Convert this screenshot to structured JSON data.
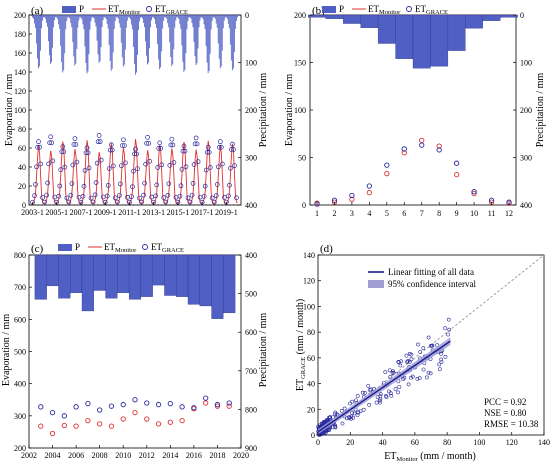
{
  "colors": {
    "precip": "#4f5fc4",
    "et_monitor": "#e03030",
    "et_grace": "#2a2aa0",
    "fit": "#1a1a8c",
    "ci": "#9f9fd6",
    "scatter": "#2a2aa0"
  },
  "chart_data": [
    {
      "panel": "a",
      "type": "line",
      "x_tick_labels": [
        "2003-1",
        "2005-1",
        "2007-1",
        "2009-1",
        "2011-1",
        "2013-1",
        "2015-1",
        "2017-1",
        "2019-1"
      ],
      "ylabel": "Evaporation / mm",
      "ylabel2": "Precipitation / mm",
      "ylim": [
        0,
        200
      ],
      "yticks": [
        0,
        20,
        40,
        60,
        80,
        100,
        120,
        140,
        160,
        180,
        200
      ],
      "ylim2": [
        0,
        400
      ],
      "yticks2": [
        0,
        100,
        200,
        300,
        400
      ],
      "legend": {
        "p": "P",
        "monitor_base": "ET",
        "monitor_sub": "Monitor",
        "grace_base": "ET",
        "grace_sub": "GRACE"
      },
      "years": [
        2003,
        2019
      ],
      "et_monitor_seasonal": [
        2,
        3,
        6,
        13,
        30,
        50,
        62,
        55,
        32,
        10,
        3,
        2
      ],
      "et_grace_seasonal": [
        1,
        5,
        8,
        20,
        39,
        60,
        66,
        60,
        42,
        14,
        6,
        3
      ],
      "precip_seasonal": [
        5,
        8,
        18,
        27,
        60,
        92,
        112,
        108,
        75,
        28,
        12,
        5
      ]
    },
    {
      "panel": "b",
      "type": "bar+scatter",
      "x": [
        1,
        2,
        3,
        4,
        5,
        6,
        7,
        8,
        9,
        10,
        11,
        12
      ],
      "ylabel": "Evaporation / mm",
      "ylabel2": "Precipitation / mm",
      "ylim": [
        0,
        200
      ],
      "yticks": [
        0,
        50,
        100,
        150,
        200
      ],
      "ylim2": [
        0,
        400
      ],
      "yticks2": [
        0,
        100,
        200,
        300,
        400
      ],
      "legend": {
        "p": "P",
        "monitor_base": "ET",
        "monitor_sub": "Monitor",
        "grace_base": "ET",
        "grace_sub": "GRACE"
      },
      "precip": [
        5,
        8,
        18,
        27,
        60,
        92,
        112,
        108,
        75,
        28,
        12,
        5
      ],
      "et_monitor": [
        2,
        3,
        6,
        13,
        33,
        55,
        68,
        62,
        32,
        12,
        3,
        2
      ],
      "et_grace": [
        1,
        5,
        10,
        20,
        42,
        59,
        63,
        58,
        44,
        14,
        5,
        3
      ]
    },
    {
      "panel": "c",
      "type": "bar+scatter",
      "x": [
        2003,
        2004,
        2005,
        2006,
        2007,
        2008,
        2009,
        2010,
        2011,
        2012,
        2013,
        2014,
        2015,
        2016,
        2017,
        2018,
        2019
      ],
      "x_tick_labels": [
        "2002",
        "2004",
        "2006",
        "2008",
        "2010",
        "2012",
        "2014",
        "2016",
        "2018",
        "2020"
      ],
      "xlim": [
        2002,
        2020
      ],
      "ylabel": "Evaporation / mm",
      "ylabel2": "Precipitation / mm",
      "ylim": [
        200,
        800
      ],
      "yticks": [
        200,
        300,
        400,
        500,
        600,
        700,
        800
      ],
      "ylim2": [
        400,
        900
      ],
      "yticks2": [
        400,
        500,
        600,
        700,
        800,
        900
      ],
      "legend": {
        "p": "P",
        "monitor_base": "ET",
        "monitor_sub": "Monitor",
        "grace_base": "ET",
        "grace_sub": "GRACE"
      },
      "precip": [
        515,
        480,
        512,
        498,
        545,
        492,
        512,
        498,
        515,
        508,
        478,
        505,
        508,
        528,
        532,
        565,
        550
      ],
      "et_monitor": [
        268,
        245,
        270,
        268,
        285,
        275,
        268,
        290,
        310,
        290,
        275,
        280,
        285,
        322,
        340,
        330,
        330
      ],
      "et_grace": [
        328,
        310,
        300,
        328,
        338,
        318,
        330,
        335,
        350,
        340,
        335,
        338,
        328,
        325,
        355,
        335,
        340
      ]
    },
    {
      "panel": "d",
      "type": "scatter",
      "xlabel_base": "ET",
      "xlabel_sub": "Monitor",
      "xlabel_rest": " (mm / month)",
      "ylabel_base": "ET",
      "ylabel_sub": "GRACE",
      "ylabel_rest": " (mm / month)",
      "xlim": [
        0,
        140
      ],
      "ylim": [
        0,
        140
      ],
      "xticks": [
        0,
        20,
        40,
        60,
        80,
        100,
        120,
        140
      ],
      "yticks": [
        0,
        20,
        40,
        60,
        80,
        100,
        120,
        140
      ],
      "legend": [
        "Linear fitting of all data",
        "95% confidence interval"
      ],
      "fit": {
        "slope": 0.86,
        "intercept": 2.5,
        "x_range": [
          0,
          82
        ]
      },
      "stats": [
        "PCC = 0.92",
        "NSE = 0.80",
        "RMSE = 10.38"
      ]
    }
  ]
}
